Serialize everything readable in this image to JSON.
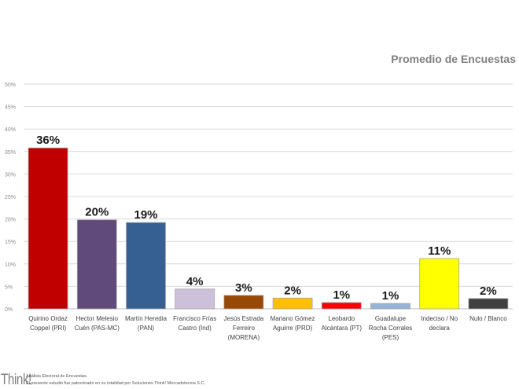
{
  "chart_data": {
    "type": "bar",
    "title": "Promedio de Encuestas",
    "xlabel": "",
    "ylabel": "",
    "ylim": [
      0,
      50
    ],
    "yticks": [
      "0%",
      "5%",
      "10%",
      "15%",
      "20%",
      "25%",
      "30%",
      "35%",
      "40%",
      "45%",
      "50%"
    ],
    "grid": true,
    "categories": [
      [
        "Quirino Ordaz",
        "Coppel (PRI)"
      ],
      [
        "Hector Melesio",
        "Cuén (PAS-MC)"
      ],
      [
        "Martín Heredia",
        "(PAN)"
      ],
      [
        "Francisco Frías",
        "Castro (Ind)"
      ],
      [
        "Jesús Estrada",
        "Ferreiro",
        "(MORENA)"
      ],
      [
        "Mariano Gómez",
        "Aguirre (PRD)"
      ],
      [
        "Leobardo",
        "Alcántara (PT)"
      ],
      [
        "Guadalupe",
        "Rocha Corrales",
        "(PES)"
      ],
      [
        "Indeciso / No",
        "declara"
      ],
      [
        "Nulo / Blanco"
      ]
    ],
    "values": [
      35.8,
      19.8,
      19.2,
      4.4,
      3.0,
      2.4,
      1.4,
      1.2,
      11.2,
      2.3
    ],
    "data_labels": [
      "36%",
      "20%",
      "19%",
      "4%",
      "3%",
      "2%",
      "1%",
      "1%",
      "11%",
      "2%"
    ],
    "colors": [
      "#c00000",
      "#604a7b",
      "#366092",
      "#ccc0da",
      "#984807",
      "#ffc000",
      "#ff0000",
      "#95b3d7",
      "#ffff00",
      "#404040"
    ]
  },
  "footer": {
    "logo": "Think!",
    "line1": "Análisis Electoral de Encuestas.",
    "line2": "El presente estudio fue patrocinado  en su totalidad  por Soluciones  Think! Mercadotecnia  S.C."
  }
}
